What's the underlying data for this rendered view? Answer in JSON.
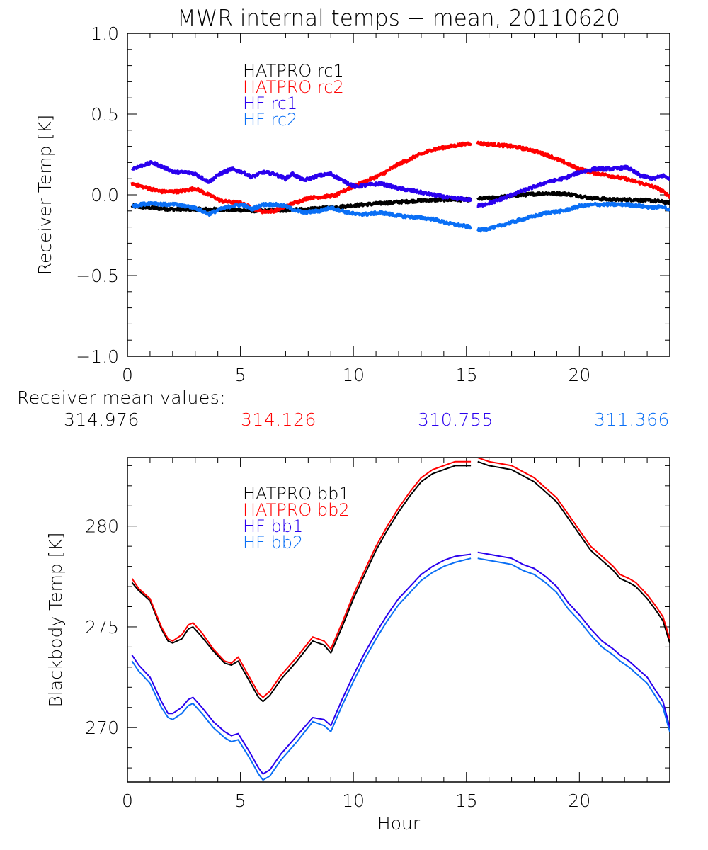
{
  "title": "MWR internal temps − mean, 20110620",
  "colors": {
    "hatpro1": "#000000",
    "hatpro2": "#ff0000",
    "hf1": "#2a00ee",
    "hf2": "#0a6ff5"
  },
  "mean_values": {
    "label": "Receiver mean values:",
    "values": [
      {
        "name": "HATPRO rc1",
        "value": "314.976",
        "color": "#000000"
      },
      {
        "name": "HATPRO rc2",
        "value": "314.126",
        "color": "#ff0000"
      },
      {
        "name": "HF rc1",
        "value": "310.755",
        "color": "#2a00ee"
      },
      {
        "name": "HF rc2",
        "value": "311.366",
        "color": "#0a6ff5"
      }
    ]
  },
  "chart_data": [
    {
      "type": "line",
      "title": "MWR internal temps − mean, 20110620",
      "xlabel": "",
      "ylabel": "Receiver Temp [K]",
      "xlim": [
        0,
        24
      ],
      "ylim": [
        -1.0,
        1.0
      ],
      "xticks": [
        0,
        5,
        10,
        15,
        20
      ],
      "xtick_labels": [
        "0",
        "5",
        "10",
        "15",
        "20"
      ],
      "yticks": [
        -1.0,
        -0.5,
        0.0,
        0.5,
        1.0
      ],
      "ytick_labels": [
        "−1.0",
        "−0.5",
        "0.0",
        "0.5",
        "1.0"
      ],
      "grid": false,
      "legend_position": "top-left-inside",
      "gap": [
        15.25,
        15.45
      ],
      "series": [
        {
          "name": "HATPRO rc1",
          "color": "#000000",
          "noisy": true,
          "x": [
            0.2,
            1,
            2,
            3,
            4,
            5,
            6,
            7,
            8,
            9,
            10,
            11,
            12,
            13,
            14,
            15.2,
            15.5,
            16.5,
            17.5,
            18.5,
            19.5,
            20.5,
            21.5,
            22.5,
            23.5,
            24
          ],
          "y": [
            -0.07,
            -0.08,
            -0.09,
            -0.09,
            -0.09,
            -0.095,
            -0.1,
            -0.095,
            -0.09,
            -0.08,
            -0.065,
            -0.055,
            -0.045,
            -0.035,
            -0.03,
            -0.03,
            -0.025,
            -0.015,
            0.0,
            0.01,
            0.005,
            -0.02,
            -0.03,
            -0.03,
            -0.04,
            -0.05
          ]
        },
        {
          "name": "HATPRO rc2",
          "color": "#ff0000",
          "noisy": true,
          "x": [
            0.2,
            0.8,
            1.5,
            2.3,
            3.0,
            3.6,
            4.2,
            5.0,
            5.5,
            6.0,
            6.5,
            7.2,
            8.0,
            8.8,
            9.2,
            9.8,
            10.5,
            11.3,
            12.0,
            12.8,
            13.5,
            14.3,
            15.2,
            15.5,
            16.3,
            17.0,
            17.8,
            18.5,
            19.2,
            19.8,
            20.5,
            21.3,
            22.0,
            22.8,
            23.5,
            24
          ],
          "y": [
            0.07,
            0.045,
            0.02,
            0.02,
            0.04,
            0.0,
            -0.04,
            -0.05,
            -0.08,
            -0.105,
            -0.1,
            -0.06,
            -0.02,
            -0.01,
            -0.005,
            0.04,
            0.08,
            0.13,
            0.19,
            0.24,
            0.28,
            0.3,
            0.32,
            0.32,
            0.31,
            0.3,
            0.28,
            0.25,
            0.21,
            0.17,
            0.14,
            0.12,
            0.1,
            0.07,
            0.04,
            -0.01
          ]
        },
        {
          "name": "HF rc1",
          "color": "#2a00ee",
          "noisy": true,
          "x": [
            0.2,
            0.6,
            1.1,
            1.6,
            2.1,
            2.6,
            3.0,
            3.6,
            4.1,
            4.6,
            5.1,
            5.5,
            6.0,
            6.5,
            7.0,
            7.3,
            7.8,
            8.5,
            9.0,
            9.5,
            10.1,
            10.6,
            11.2,
            12.0,
            12.8,
            13.5,
            14.3,
            15.2,
            15.5,
            16.3,
            17.0,
            17.8,
            18.6,
            19.3,
            20.0,
            20.7,
            21.5,
            22.1,
            22.7,
            23.3,
            23.7,
            24
          ],
          "y": [
            0.16,
            0.18,
            0.2,
            0.17,
            0.14,
            0.14,
            0.13,
            0.08,
            0.13,
            0.16,
            0.14,
            0.11,
            0.14,
            0.13,
            0.1,
            0.13,
            0.09,
            0.12,
            0.13,
            0.09,
            0.05,
            0.06,
            0.07,
            0.04,
            0.02,
            0.0,
            -0.02,
            -0.03,
            -0.07,
            -0.04,
            0.0,
            0.04,
            0.08,
            0.1,
            0.14,
            0.16,
            0.16,
            0.17,
            0.12,
            0.1,
            0.12,
            0.1
          ]
        },
        {
          "name": "HF rc2",
          "color": "#0a6ff5",
          "noisy": true,
          "x": [
            0.2,
            0.6,
            1.1,
            1.6,
            2.1,
            2.6,
            3.0,
            3.6,
            4.1,
            4.6,
            5.1,
            5.5,
            6.0,
            6.5,
            7.0,
            7.3,
            7.8,
            8.5,
            9.0,
            9.5,
            10.1,
            10.6,
            11.2,
            12.0,
            12.8,
            13.5,
            14.3,
            15.2,
            15.5,
            16.3,
            17.0,
            17.8,
            18.6,
            19.3,
            20.0,
            20.7,
            21.5,
            22.1,
            22.7,
            23.3,
            23.7,
            24
          ],
          "y": [
            -0.07,
            -0.06,
            -0.05,
            -0.06,
            -0.06,
            -0.07,
            -0.08,
            -0.12,
            -0.09,
            -0.07,
            -0.06,
            -0.09,
            -0.06,
            -0.06,
            -0.07,
            -0.09,
            -0.11,
            -0.1,
            -0.08,
            -0.1,
            -0.12,
            -0.12,
            -0.11,
            -0.13,
            -0.14,
            -0.15,
            -0.18,
            -0.2,
            -0.22,
            -0.2,
            -0.17,
            -0.14,
            -0.11,
            -0.1,
            -0.07,
            -0.06,
            -0.06,
            -0.06,
            -0.07,
            -0.08,
            -0.07,
            -0.1
          ]
        }
      ]
    },
    {
      "type": "line",
      "title": "",
      "xlabel": "Hour",
      "ylabel": "Blackbody Temp [K]",
      "xlim": [
        0,
        24
      ],
      "ylim": [
        267.3,
        283.4
      ],
      "xticks": [
        0,
        5,
        10,
        15,
        20
      ],
      "xtick_labels": [
        "0",
        "5",
        "10",
        "15",
        "20"
      ],
      "yticks": [
        270,
        275,
        280
      ],
      "ytick_labels": [
        "270",
        "275",
        "280"
      ],
      "grid": false,
      "legend_position": "top-left-inside",
      "gap": [
        15.25,
        15.45
      ],
      "series": [
        {
          "name": "HATPRO bb1",
          "color": "#000000",
          "noisy": false,
          "x": [
            0.2,
            0.5,
            1.0,
            1.5,
            1.8,
            2.0,
            2.4,
            2.7,
            2.9,
            3.3,
            3.8,
            4.3,
            4.6,
            4.9,
            5.4,
            5.8,
            6.0,
            6.3,
            6.8,
            7.5,
            8.2,
            8.7,
            9.0,
            9.5,
            10.0,
            10.5,
            11.0,
            11.5,
            12.0,
            12.5,
            13.0,
            13.5,
            14.0,
            14.5,
            15.2,
            15.5,
            16.0,
            16.5,
            17.0,
            17.5,
            18.0,
            18.5,
            19.0,
            19.5,
            20.0,
            20.5,
            21.0,
            21.5,
            21.8,
            22.2,
            22.5,
            23.0,
            23.4,
            23.7,
            24.0
          ],
          "y": [
            277.2,
            276.8,
            276.3,
            274.9,
            274.3,
            274.2,
            274.4,
            274.9,
            275.0,
            274.5,
            273.8,
            273.2,
            273.1,
            273.3,
            272.3,
            271.5,
            271.3,
            271.6,
            272.4,
            273.3,
            274.3,
            274.1,
            273.7,
            275.0,
            276.4,
            277.6,
            278.8,
            279.8,
            280.7,
            281.5,
            282.2,
            282.6,
            282.8,
            283.0,
            283.0,
            283.2,
            283.0,
            282.9,
            282.8,
            282.5,
            282.2,
            281.7,
            281.2,
            280.4,
            279.6,
            278.8,
            278.3,
            277.8,
            277.4,
            277.2,
            277.0,
            276.4,
            275.8,
            275.3,
            274.2
          ]
        },
        {
          "name": "HATPRO bb2",
          "color": "#ff0000",
          "noisy": false,
          "x": [
            0.2,
            0.5,
            1.0,
            1.5,
            1.8,
            2.0,
            2.4,
            2.7,
            2.9,
            3.3,
            3.8,
            4.3,
            4.6,
            4.9,
            5.4,
            5.8,
            6.0,
            6.3,
            6.8,
            7.5,
            8.2,
            8.7,
            9.0,
            9.5,
            10.0,
            10.5,
            11.0,
            11.5,
            12.0,
            12.5,
            13.0,
            13.5,
            14.0,
            14.5,
            15.2,
            15.5,
            16.0,
            16.5,
            17.0,
            17.5,
            18.0,
            18.5,
            19.0,
            19.5,
            20.0,
            20.5,
            21.0,
            21.5,
            21.8,
            22.2,
            22.5,
            23.0,
            23.4,
            23.7,
            24.0
          ],
          "y": [
            277.4,
            276.9,
            276.4,
            275.0,
            274.4,
            274.3,
            274.6,
            275.1,
            275.2,
            274.7,
            273.9,
            273.3,
            273.2,
            273.5,
            272.5,
            271.7,
            271.5,
            271.8,
            272.6,
            273.5,
            274.5,
            274.3,
            273.9,
            275.2,
            276.6,
            277.8,
            279.0,
            280.0,
            280.9,
            281.7,
            282.4,
            282.8,
            283.0,
            283.2,
            283.2,
            283.4,
            283.2,
            283.1,
            283.0,
            282.7,
            282.4,
            281.9,
            281.4,
            280.6,
            279.8,
            279.0,
            278.5,
            278.0,
            277.6,
            277.4,
            277.2,
            276.6,
            276.0,
            275.5,
            274.4
          ]
        },
        {
          "name": "HF bb1",
          "color": "#2a00ee",
          "noisy": false,
          "x": [
            0.2,
            0.5,
            1.0,
            1.5,
            1.8,
            2.0,
            2.4,
            2.7,
            2.9,
            3.3,
            3.8,
            4.3,
            4.6,
            4.9,
            5.4,
            5.8,
            6.0,
            6.3,
            6.8,
            7.5,
            8.2,
            8.7,
            9.0,
            9.5,
            10.0,
            10.5,
            11.0,
            11.5,
            12.0,
            12.5,
            13.0,
            13.5,
            14.0,
            14.5,
            15.2,
            15.5,
            16.0,
            16.5,
            17.0,
            17.5,
            18.0,
            18.5,
            19.0,
            19.5,
            20.0,
            20.5,
            21.0,
            21.5,
            21.8,
            22.2,
            22.5,
            23.0,
            23.4,
            23.7,
            24.0
          ],
          "y": [
            273.6,
            273.1,
            272.5,
            271.3,
            270.7,
            270.7,
            271.0,
            271.4,
            271.5,
            271.0,
            270.3,
            269.8,
            269.6,
            269.7,
            268.8,
            268.0,
            267.7,
            267.9,
            268.7,
            269.6,
            270.5,
            270.4,
            270.1,
            271.4,
            272.6,
            273.7,
            274.7,
            275.6,
            276.4,
            277.0,
            277.6,
            278.0,
            278.3,
            278.5,
            278.6,
            278.7,
            278.6,
            278.5,
            278.4,
            278.1,
            277.9,
            277.5,
            277.0,
            276.2,
            275.6,
            274.9,
            274.3,
            273.9,
            273.6,
            273.3,
            273.0,
            272.5,
            271.8,
            271.3,
            270.0
          ]
        },
        {
          "name": "HF bb2",
          "color": "#0a6ff5",
          "noisy": false,
          "x": [
            0.2,
            0.5,
            1.0,
            1.5,
            1.8,
            2.0,
            2.4,
            2.7,
            2.9,
            3.3,
            3.8,
            4.3,
            4.6,
            4.9,
            5.4,
            5.8,
            6.0,
            6.3,
            6.8,
            7.5,
            8.2,
            8.7,
            9.0,
            9.5,
            10.0,
            10.5,
            11.0,
            11.5,
            12.0,
            12.5,
            13.0,
            13.5,
            14.0,
            14.5,
            15.2,
            15.5,
            16.0,
            16.5,
            17.0,
            17.5,
            18.0,
            18.5,
            19.0,
            19.5,
            20.0,
            20.5,
            21.0,
            21.5,
            21.8,
            22.2,
            22.5,
            23.0,
            23.4,
            23.7,
            24.0
          ],
          "y": [
            273.3,
            272.8,
            272.2,
            271.0,
            270.5,
            270.4,
            270.7,
            271.1,
            271.2,
            270.7,
            270.0,
            269.5,
            269.3,
            269.4,
            268.5,
            267.7,
            267.4,
            267.6,
            268.4,
            269.3,
            270.3,
            270.1,
            269.8,
            271.1,
            272.3,
            273.4,
            274.4,
            275.3,
            276.1,
            276.7,
            277.3,
            277.7,
            278.0,
            278.2,
            278.4,
            278.4,
            278.3,
            278.2,
            278.1,
            277.8,
            277.6,
            277.2,
            276.7,
            275.9,
            275.3,
            274.6,
            274.0,
            273.6,
            273.3,
            273.0,
            272.7,
            272.2,
            271.5,
            271.0,
            269.8
          ]
        }
      ]
    }
  ]
}
